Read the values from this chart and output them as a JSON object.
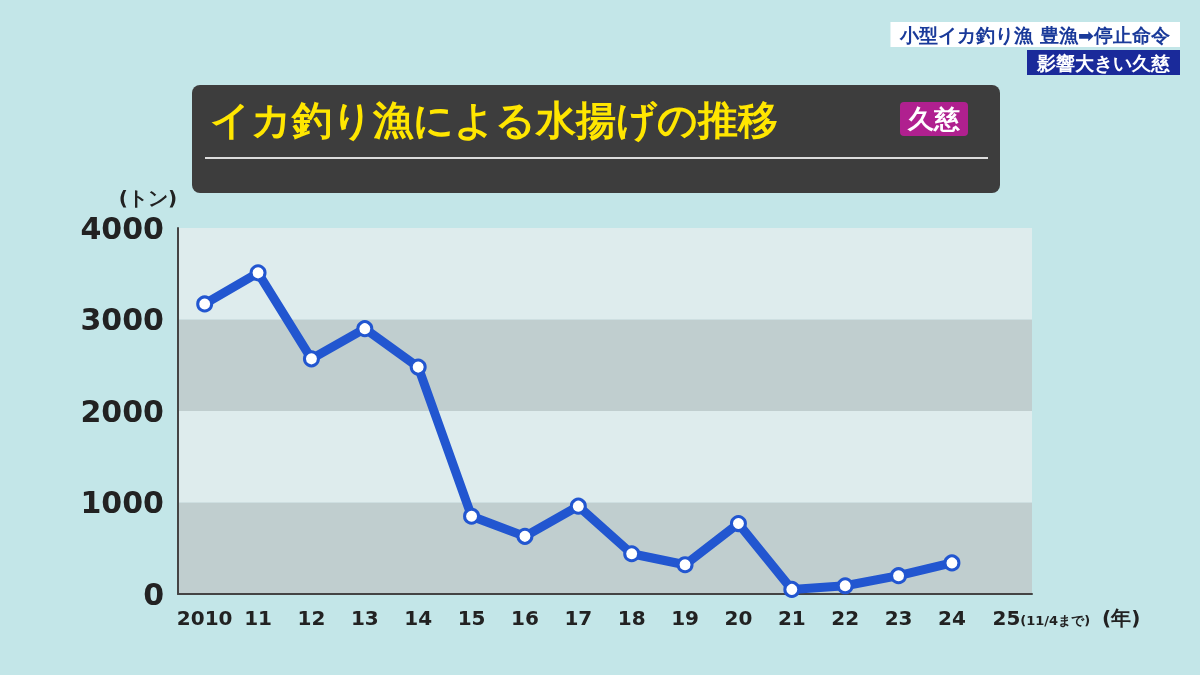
{
  "chart_data": {
    "type": "line",
    "title": "イカ釣り漁による水揚げの推移",
    "subtitle": "久慈",
    "ylabel": "(トン)",
    "xlabel": "(年)",
    "annotations": [
      "小型イカ釣り漁 豊漁➡停止命令",
      "影響大きい久慈"
    ],
    "categories": [
      "2010",
      "11",
      "12",
      "13",
      "14",
      "15",
      "16",
      "17",
      "18",
      "19",
      "20",
      "21",
      "22",
      "23",
      "24",
      "25(11/4まで)"
    ],
    "series": [
      {
        "color": "#2256d0",
        "values": [
          3170,
          3510,
          2570,
          2900,
          2480,
          850,
          630,
          960,
          440,
          320,
          770,
          50,
          90,
          200,
          340,
          null
        ]
      }
    ],
    "ylim": [
      0,
      4000
    ],
    "yticks": [
      0,
      1000,
      2000,
      3000,
      4000
    ],
    "marker": "circle",
    "line_style": "solid"
  }
}
